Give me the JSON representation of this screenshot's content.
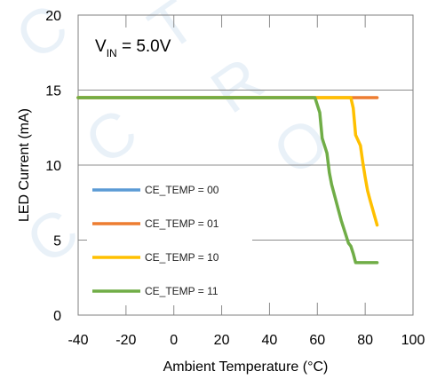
{
  "chart_data": {
    "type": "line",
    "title": "",
    "xlabel": "Ambient Temperature (°C)",
    "ylabel": "LED Current (mA)",
    "xlim": [
      -40,
      100
    ],
    "ylim": [
      0,
      20
    ],
    "xticks": [
      -40,
      -20,
      0,
      20,
      40,
      60,
      80,
      100
    ],
    "yticks": [
      0,
      5,
      10,
      15,
      20
    ],
    "grid": "horizontal major + vertical minor",
    "legend_placement": "lower-left",
    "annotation": {
      "main": "V",
      "sub": "IN",
      "rest": " = 5.0V"
    },
    "series": [
      {
        "name": "CE_TEMP = 00",
        "color": "#5b9bd5",
        "x": [
          -40,
          58
        ],
        "y": [
          14.5,
          14.5
        ]
      },
      {
        "name": "CE_TEMP = 01",
        "color": "#ed7d31",
        "x": [
          -40,
          85
        ],
        "y": [
          14.5,
          14.5
        ]
      },
      {
        "name": "CE_TEMP = 10",
        "color": "#ffc000",
        "x": [
          -40,
          74,
          75,
          76,
          78,
          79,
          80,
          81,
          82,
          85
        ],
        "y": [
          14.5,
          14.5,
          13.8,
          12,
          11.3,
          10.2,
          9.2,
          8.3,
          7.7,
          6
        ]
      },
      {
        "name": "CE_TEMP = 11",
        "color": "#70ad47",
        "x": [
          -40,
          59,
          61,
          62,
          64,
          65,
          66,
          67,
          69,
          70,
          72,
          73,
          74,
          75,
          76,
          77,
          85
        ],
        "y": [
          14.5,
          14.5,
          13.5,
          11.8,
          10.8,
          9.5,
          8.7,
          8.1,
          6.9,
          6.3,
          5.3,
          4.8,
          4.6,
          4.1,
          3.5,
          3.5,
          3.5
        ]
      }
    ]
  }
}
